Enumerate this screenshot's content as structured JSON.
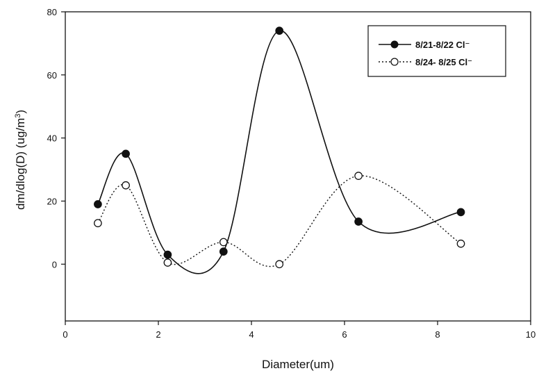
{
  "chart_data": {
    "type": "line",
    "title": "",
    "xlabel": "Diameter(um)",
    "ylabel": "dm/dlog(D) (ug/m",
    "ylabel_superscript": "3",
    "ylabel_suffix": ")",
    "xlim": [
      0,
      10
    ],
    "ylim": [
      -18,
      80
    ],
    "xticks": [
      0,
      2,
      4,
      6,
      8,
      10
    ],
    "yticks": [
      0,
      20,
      40,
      60,
      80
    ],
    "grid": false,
    "legend_position": "top-right",
    "series": [
      {
        "name": "8/21-8/22 Cl⁻",
        "marker": "filled-circle",
        "line_style": "solid",
        "color": "#111111",
        "x": [
          0.7,
          1.3,
          2.2,
          3.4,
          4.6,
          6.3,
          8.5
        ],
        "y": [
          19,
          35,
          3,
          4,
          74,
          13.5,
          16.5
        ]
      },
      {
        "name": "8/24- 8/25 Cl⁻",
        "marker": "open-circle",
        "line_style": "dotted",
        "color": "#111111",
        "x": [
          0.7,
          1.3,
          2.2,
          3.4,
          4.6,
          6.3,
          8.5
        ],
        "y": [
          13,
          25,
          0.5,
          7,
          0,
          28,
          6.5
        ]
      }
    ]
  }
}
